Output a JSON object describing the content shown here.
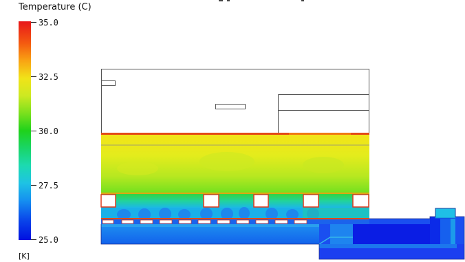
{
  "legend": {
    "title": "Temperature (C)",
    "unit": "[K]",
    "ticks": [
      "35.0",
      "32.5",
      "30.0",
      "27.5",
      "25.0"
    ],
    "max": 35.0,
    "min": 25.0,
    "colors": [
      "#e8161a",
      "#f9a313",
      "#f1e318",
      "#7be01d",
      "#1fd21b",
      "#1cdab1",
      "#1ec3e4",
      "#158ff0",
      "#0010e0"
    ]
  }
}
